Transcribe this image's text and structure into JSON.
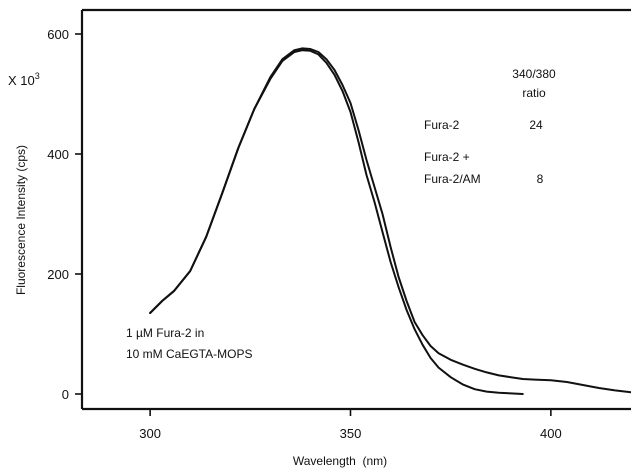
{
  "chart_data": {
    "type": "line",
    "xlabel": "Wavelength  (nm)",
    "ylabel": "Fluorescence Intensity (cps)",
    "y_multiplier": {
      "prefix": "X 10",
      "exponent": "3"
    },
    "xlim": [
      283,
      420
    ],
    "ylim": [
      -25,
      640
    ],
    "x_ticks": [
      300,
      350,
      400
    ],
    "y_ticks": [
      0,
      200,
      400,
      600
    ],
    "x_tick_labels": [
      "300",
      "350",
      "400"
    ],
    "y_tick_labels": [
      "0",
      "200",
      "400",
      "600"
    ],
    "grid": false,
    "series": [
      {
        "x": [
          300,
          303,
          306,
          310,
          314,
          318,
          322,
          326,
          330,
          333,
          336,
          338,
          340,
          342,
          344,
          346,
          348,
          350,
          352,
          354,
          356,
          358,
          360,
          362,
          364,
          366,
          368,
          370,
          372,
          375,
          378,
          381,
          384,
          387,
          390,
          393
        ],
        "y": [
          135,
          155,
          172,
          205,
          262,
          335,
          410,
          475,
          525,
          555,
          570,
          573,
          572,
          566,
          552,
          532,
          505,
          470,
          420,
          365,
          320,
          270,
          220,
          178,
          140,
          108,
          82,
          60,
          44,
          28,
          16,
          8,
          4,
          2,
          1,
          0
        ]
      },
      {
        "x": [
          300,
          303,
          306,
          310,
          314,
          318,
          322,
          326,
          330,
          333,
          336,
          338,
          340,
          342,
          344,
          346,
          348,
          350,
          352,
          354,
          356,
          358,
          360,
          362,
          364,
          366,
          368,
          370,
          372,
          375,
          378,
          381,
          384,
          387,
          390,
          393,
          396,
          400,
          404,
          408,
          412,
          416,
          420
        ],
        "y": [
          135,
          155,
          172,
          205,
          262,
          335,
          410,
          475,
          528,
          558,
          573,
          576,
          575,
          570,
          558,
          540,
          515,
          485,
          440,
          390,
          345,
          300,
          245,
          195,
          155,
          120,
          98,
          80,
          68,
          57,
          49,
          42,
          36,
          31,
          28,
          25,
          24,
          23,
          20,
          15,
          10,
          6,
          3
        ]
      }
    ],
    "annotations": {
      "ratio_header_line1": "340/380",
      "ratio_header_line2": "ratio",
      "rows": [
        {
          "label": "Fura-2",
          "value": "24"
        },
        {
          "label_line1": "Fura-2 +",
          "label_line2": "Fura-2/AM",
          "value": "8"
        }
      ],
      "sample_line1": "1 µM Fura-2 in",
      "sample_line2": "10 mM CaEGTA-MOPS"
    }
  }
}
